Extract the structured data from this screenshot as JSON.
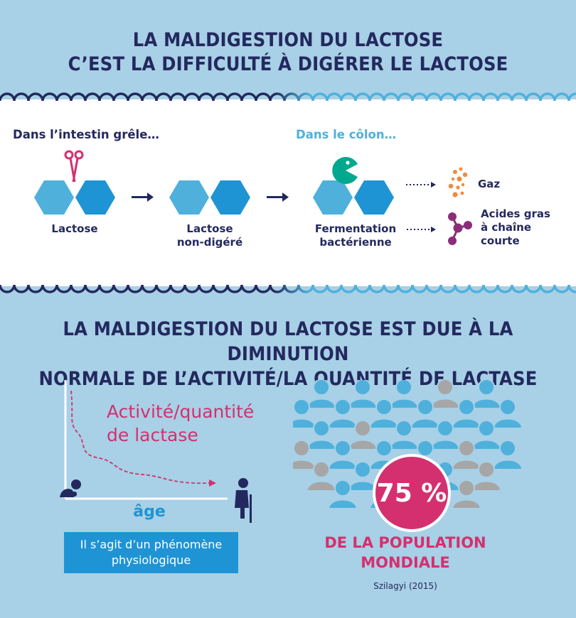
{
  "title_top": {
    "line1": "LA MALDIGESTION DU LACTOSE",
    "line2": "C’EST LA DIFFICULTÉ À DIGÉRER LE LACTOSE"
  },
  "sections": {
    "small_intestine": "Dans l’intestin grêle…",
    "colon": "Dans le côlon…"
  },
  "steps": {
    "lactose": "Lactose",
    "undigested_line1": "Lactose",
    "undigested_line2": "non-digéré",
    "fermentation_line1": "Fermentation",
    "fermentation_line2": "bactérienne"
  },
  "products": {
    "gas": "Gaz",
    "fatty_line1": "Acides gras",
    "fatty_line2": "à chaîne",
    "fatty_line3": "courte"
  },
  "title_bottom": {
    "line1": "LA MALDIGESTION DU LACTOSE EST DUE À LA DIMINUTION",
    "line2": "NORMALE DE L’ACTIVITÉ/LA QUANTITÉ DE LACTASE"
  },
  "graph": {
    "curve_label_line1": "Activité/quantité",
    "curve_label_line2": "de lactase",
    "x_label": "âge"
  },
  "note": {
    "line1": "Il s’agit d’un phénomène",
    "line2": "physiologique"
  },
  "stat": {
    "value": "75 %",
    "label_line1": "DE LA POPULATION",
    "label_line2": "MONDIALE",
    "source": "Szilagyi (2015)"
  },
  "colors": {
    "navy": "#23295e",
    "light_blue": "#4fb0dc",
    "mid_blue": "#1f94d4",
    "magenta": "#d4306f",
    "orange": "#f08a3c",
    "purple": "#8b2d7a",
    "gray": "#a6a6a6",
    "background": "#a8d0e6"
  }
}
